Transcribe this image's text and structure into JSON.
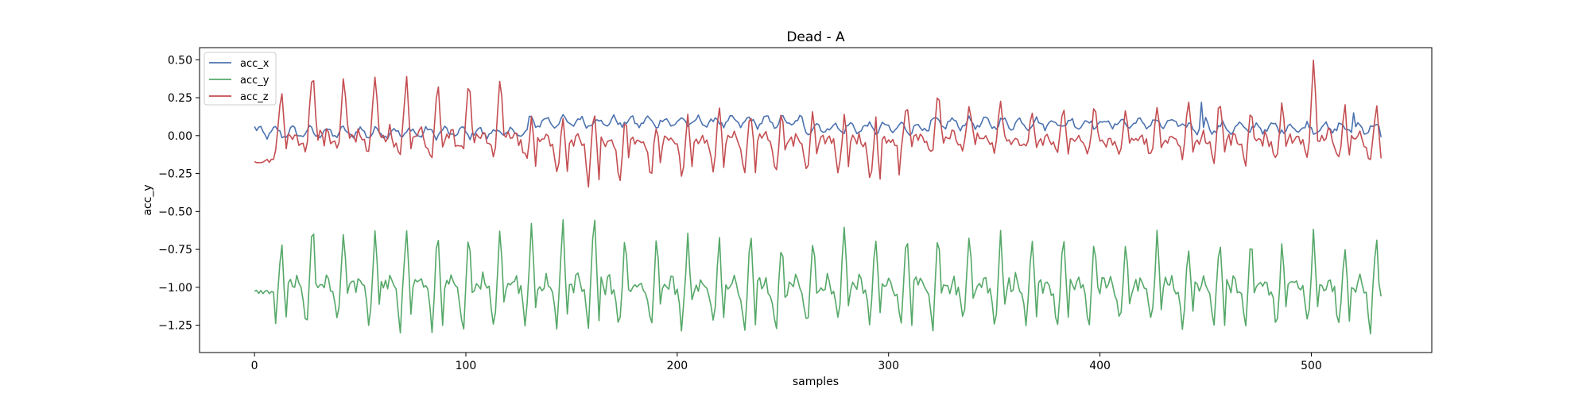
{
  "chart_data": {
    "type": "line",
    "title": "Dead - A",
    "xlabel": "samples",
    "ylabel": "acc_y",
    "xlim": [
      -26,
      557
    ],
    "ylim": [
      -1.43,
      0.58
    ],
    "xticks": [
      0,
      100,
      200,
      300,
      400,
      500
    ],
    "xtick_labels": [
      "0",
      "100",
      "200",
      "300",
      "400",
      "500"
    ],
    "yticks": [
      0.5,
      0.25,
      0.0,
      -0.25,
      -0.5,
      -0.75,
      -1.0,
      -1.25
    ],
    "ytick_labels": [
      "0.50",
      "0.25",
      "0.00",
      "−0.25",
      "−0.50",
      "−0.75",
      "−1.00",
      "−1.25"
    ],
    "grid": false,
    "legend_position": "top-left",
    "x_range": [
      0,
      533
    ],
    "series": [
      {
        "name": "acc_x",
        "color": "#4c72b0",
        "baseline": 0.02,
        "amplitude": 0.03,
        "period": 8,
        "noise": 0.02,
        "segments": [
          {
            "x": [
              0,
              130
            ],
            "mean": 0.02
          },
          {
            "x": [
              130,
              260
            ],
            "mean": 0.09
          },
          {
            "x": [
              260,
              320
            ],
            "mean": 0.05
          },
          {
            "x": [
              320,
              440
            ],
            "mean": 0.08
          },
          {
            "x": [
              440,
              533
            ],
            "mean": 0.05
          }
        ],
        "anchor_points": [
          [
            0,
            0.06
          ],
          [
            448,
            0.22
          ],
          [
            450,
            0.12
          ],
          [
            520,
            0.15
          ],
          [
            533,
            -0.01
          ]
        ]
      },
      {
        "name": "acc_y",
        "color": "#55a868",
        "baseline": -1.02,
        "noise": 0.04,
        "period": 14.8,
        "peak_values": [
          -0.67,
          -0.53,
          -0.57,
          -0.61,
          -0.61,
          -0.61,
          -0.56,
          -0.58,
          -0.6,
          -0.55,
          -0.48,
          -0.62,
          -0.6,
          -0.63,
          -0.67,
          -0.6,
          -0.61,
          -0.63,
          -0.58,
          -0.64,
          -0.61,
          -0.61,
          -0.57,
          -0.61,
          -0.67,
          -0.62,
          -0.63,
          -0.67,
          -0.62,
          -0.69,
          -0.66,
          -0.63,
          -0.69,
          -0.63,
          -0.68,
          -0.62,
          -0.64
        ],
        "trough_values": [
          -1.27,
          -1.24,
          -1.27,
          -1.31,
          -1.25,
          -1.3,
          -1.34,
          -1.31,
          -1.28,
          -1.3,
          -1.3,
          -1.27,
          -1.35,
          -1.26,
          -1.29,
          -1.31,
          -1.3,
          -1.27,
          -1.26,
          -1.25,
          -1.27,
          -1.3,
          -1.26,
          -1.3,
          -1.31,
          -1.28,
          -1.27,
          -1.26,
          -1.3,
          -1.28,
          -1.26,
          -1.31,
          -1.27,
          -1.29,
          -1.28,
          -1.31
        ],
        "start_value": -1.03,
        "end_value": -1.06
      },
      {
        "name": "acc_z",
        "color": "#c44e52",
        "baseline": -0.05,
        "noise": 0.03,
        "period": 14.8,
        "peak_values": [
          0.32,
          0.48,
          0.43,
          0.41,
          0.4,
          0.37,
          0.42,
          0.41,
          0.14,
          0.13,
          0.18,
          0.14,
          0.11,
          0.16,
          0.22,
          0.2,
          0.22,
          0.21,
          0.17,
          0.12,
          0.22,
          0.32,
          0.24,
          0.22,
          0.19,
          0.2,
          0.21,
          0.2,
          0.22,
          0.26,
          0.26,
          0.24,
          0.24,
          0.49,
          0.21,
          0.22,
          0.23
        ],
        "trough_values": [
          -0.12,
          -0.1,
          -0.12,
          -0.12,
          -0.14,
          -0.12,
          -0.14,
          -0.14,
          -0.27,
          -0.3,
          -0.32,
          -0.3,
          -0.28,
          -0.29,
          -0.26,
          -0.27,
          -0.29,
          -0.26,
          -0.29,
          -0.38,
          -0.1,
          -0.14,
          -0.1,
          -0.09,
          -0.16,
          -0.14,
          -0.12,
          -0.15,
          -0.16,
          -0.17,
          -0.16,
          -0.21,
          -0.17,
          -0.16,
          -0.21,
          -0.18
        ],
        "start_value": -0.17,
        "end_value": -0.15
      }
    ]
  }
}
